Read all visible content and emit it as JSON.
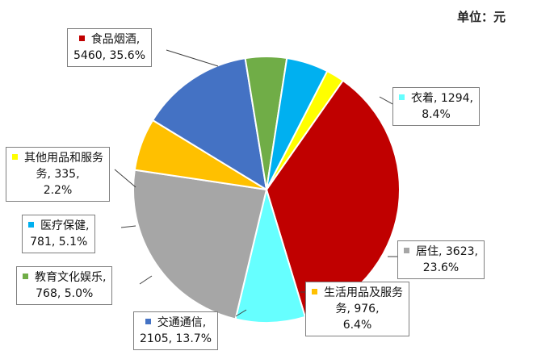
{
  "unit_label": "单位：元",
  "chart_data": {
    "type": "pie",
    "unit": "元",
    "legend": "none",
    "slices": [
      {
        "name": "食品烟酒",
        "value": 5460,
        "percent": "35.6%",
        "color": "#c00000"
      },
      {
        "name": "衣着",
        "value": 1294,
        "percent": "8.4%",
        "color": "#66ffff"
      },
      {
        "name": "居住",
        "value": 3623,
        "percent": "23.6%",
        "color": "#a6a6a6"
      },
      {
        "name": "生活用品及服务",
        "value": 976,
        "percent": "6.4%",
        "color": "#ffc000"
      },
      {
        "name": "交通通信",
        "value": 2105,
        "percent": "13.7%",
        "color": "#4472c4"
      },
      {
        "name": "教育文化娱乐",
        "value": 768,
        "percent": "5.0%",
        "color": "#70ad47"
      },
      {
        "name": "医疗保健",
        "value": 781,
        "percent": "5.1%",
        "color": "#00b0f0"
      },
      {
        "name": "其他用品和服务",
        "value": 335,
        "percent": "2.2%",
        "color": "#ffff00"
      }
    ],
    "labels": [
      {
        "line1": "食品烟酒,",
        "line2": "5460, 35.6%"
      },
      {
        "line1": "衣着, 1294,",
        "line2": "8.4%"
      },
      {
        "line1": "居住, 3623,",
        "line2": "23.6%"
      },
      {
        "line1": "生活用品及服务",
        "line2": "务, 976,",
        "line3": "6.4%"
      },
      {
        "line1": "交通通信,",
        "line2": "2105, 13.7%"
      },
      {
        "line1": "教育文化娱乐,",
        "line2": "768, 5.0%"
      },
      {
        "line1": "医疗保健,",
        "line2": "781, 5.1%"
      },
      {
        "line1": "其他用品和服务",
        "line2": "务, 335,",
        "line3": "2.2%"
      }
    ]
  }
}
